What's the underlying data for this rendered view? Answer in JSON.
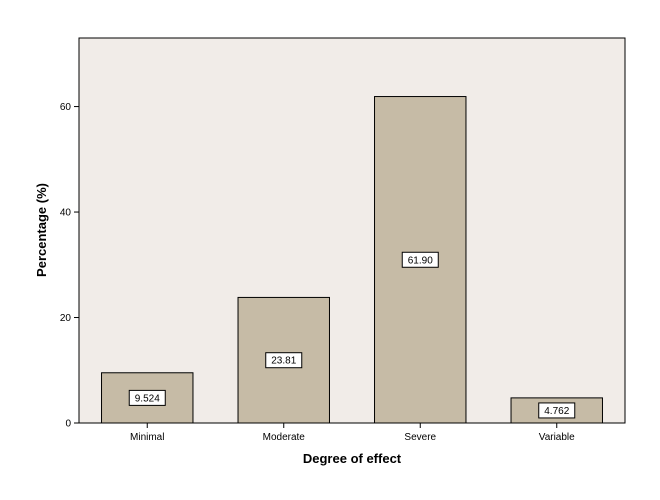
{
  "chart_data": {
    "type": "bar",
    "title": "",
    "xlabel": "Degree of effect",
    "ylabel": "Percentage (%)",
    "categories": [
      "Minimal",
      "Moderate",
      "Severe",
      "Variable"
    ],
    "values": [
      9.524,
      23.81,
      61.9,
      4.762
    ],
    "data_labels": [
      "9.524",
      "23.81",
      "61.90",
      "4.762"
    ],
    "ylim": [
      0,
      73
    ],
    "yticks": [
      0,
      20,
      40,
      60
    ],
    "grid": false,
    "legend": "none",
    "colors": {
      "plot_background": "#f1ece8",
      "bar_fill": "#c6bba6",
      "bar_stroke": "#000000"
    }
  }
}
